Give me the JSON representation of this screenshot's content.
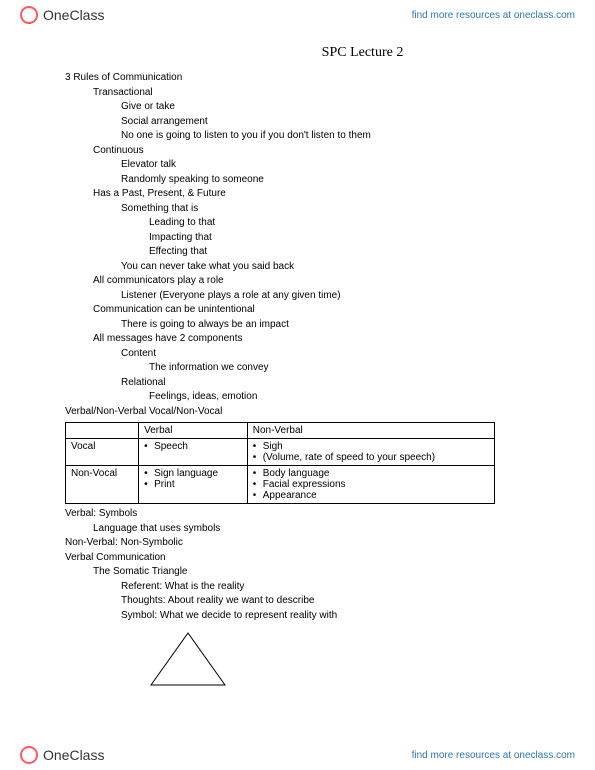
{
  "brand": {
    "name": "OneClass",
    "link_text": "find more resources at oneclass.com"
  },
  "title": "SPC Lecture 2",
  "outline": [
    {
      "level": 0,
      "text": "3 Rules of Communication"
    },
    {
      "level": 1,
      "text": "Transactional"
    },
    {
      "level": 2,
      "text": "Give or take"
    },
    {
      "level": 2,
      "text": "Social arrangement"
    },
    {
      "level": 2,
      "text": "No one is going to listen to you if you don't listen to them"
    },
    {
      "level": 1,
      "text": "Continuous"
    },
    {
      "level": 2,
      "text": "Elevator talk"
    },
    {
      "level": 2,
      "text": "Randomly speaking to someone"
    },
    {
      "level": 1,
      "text": "Has a Past, Present, & Future"
    },
    {
      "level": 2,
      "text": "Something that is"
    },
    {
      "level": 3,
      "text": "Leading to that"
    },
    {
      "level": 3,
      "text": "Impacting that"
    },
    {
      "level": 3,
      "text": "Effecting that"
    },
    {
      "level": 2,
      "text": "You can never take what you said back"
    },
    {
      "level": 1,
      "text": "All communicators play a role"
    },
    {
      "level": 2,
      "text": "Listener (Everyone plays a role at any given time)"
    },
    {
      "level": 1,
      "text": "Communication can be unintentional"
    },
    {
      "level": 2,
      "text": "There is going to always be an impact"
    },
    {
      "level": 1,
      "text": "All messages have 2 components"
    },
    {
      "level": 2,
      "text": "Content"
    },
    {
      "level": 3,
      "text": "The information we convey"
    },
    {
      "level": 2,
      "text": "Relational"
    },
    {
      "level": 3,
      "text": "Feelings, ideas, emotion"
    },
    {
      "level": 0,
      "text": "Verbal/Non-Verbal Vocal/Non-Vocal"
    }
  ],
  "matrix": {
    "columns": [
      "",
      "Verbal",
      "Non-Verbal"
    ],
    "rows": [
      {
        "label": "Vocal",
        "verbal": [
          "Speech"
        ],
        "nonverbal": [
          "Sigh",
          "(Volume, rate of speed to your speech)"
        ]
      },
      {
        "label": "Non-Vocal",
        "verbal": [
          "Sign language",
          "Print"
        ],
        "nonverbal": [
          "Body language",
          "Facial expressions",
          "Appearance"
        ]
      }
    ]
  },
  "outline2": [
    {
      "level": 0,
      "text": "Verbal: Symbols"
    },
    {
      "level": 1,
      "text": "Language that uses symbols"
    },
    {
      "level": 0,
      "text": "Non-Verbal: Non-Symbolic"
    },
    {
      "level": 0,
      "text": "Verbal Communication"
    },
    {
      "level": 1,
      "text": "The Somatic Triangle"
    },
    {
      "level": 2,
      "text": "Referent: What is the reality"
    },
    {
      "level": 2,
      "text": "Thoughts: About reality we want to describe"
    },
    {
      "level": 2,
      "text": "Symbol: What we decide to represent reality with"
    }
  ],
  "triangle": {
    "width": 78,
    "height": 56,
    "stroke": "#000000",
    "stroke_width": 1
  }
}
